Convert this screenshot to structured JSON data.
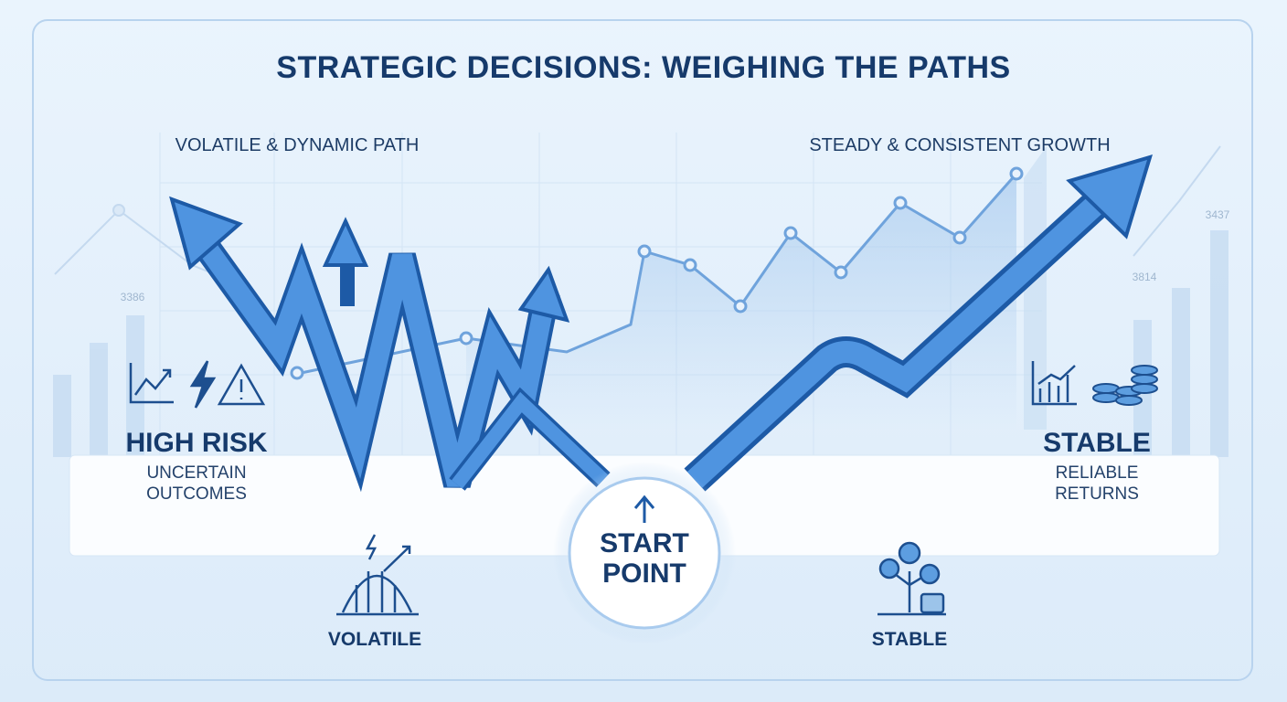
{
  "header": {
    "title": "STRATEGIC DECISIONS: WEIGHING THE PATHS"
  },
  "left_path": {
    "label": "VOLATILE & DYNAMIC PATH",
    "risk": "HIGH RISK",
    "description": "UNCERTAIN OUTCOMES",
    "icon_label": "VOLATILE"
  },
  "right_path": {
    "label": "STEADY & CONSISTENT GROWTH",
    "risk": "STABLE",
    "description": "RELIABLE RETURNS",
    "icon_label": "STABLE"
  },
  "start": {
    "label": "START POINT"
  },
  "background_numbers": [
    "3386",
    "3814",
    "3437"
  ]
}
